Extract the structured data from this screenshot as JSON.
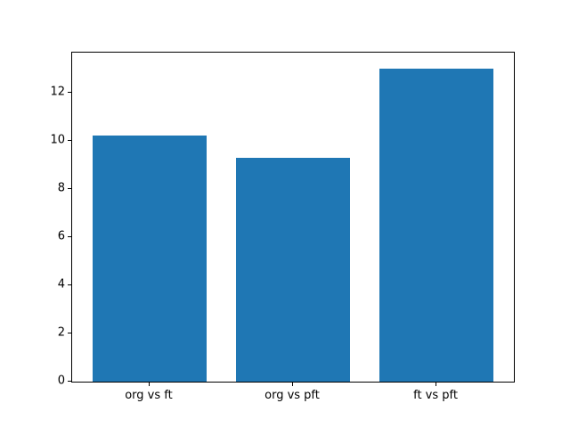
{
  "figure": {
    "background": "#ffffff"
  },
  "chart_data": {
    "type": "bar",
    "categories": [
      "org vs ft",
      "org vs pft",
      "ft vs pft"
    ],
    "values": [
      10.2,
      9.3,
      13.0
    ],
    "title": "",
    "xlabel": "",
    "ylabel": "",
    "ylim": [
      0,
      13.65
    ],
    "yticks": [
      0,
      2,
      4,
      6,
      8,
      10,
      12
    ],
    "bar_color": "#1f77b4",
    "axis_color": "#000000",
    "grid": false,
    "legend": "none",
    "bar_width_fraction": 0.8
  }
}
